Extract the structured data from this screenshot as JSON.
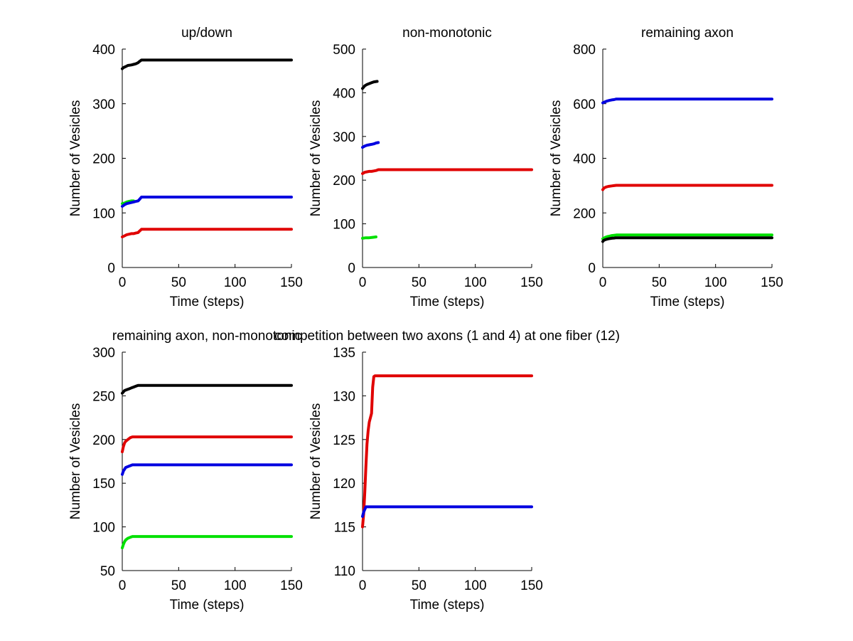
{
  "chart_data": [
    {
      "type": "line",
      "title": "up/down",
      "xlabel": "Time (steps)",
      "ylabel": "Number of Vesicles",
      "xlim": [
        0,
        150
      ],
      "ylim": [
        0,
        400
      ],
      "xticks": [
        0,
        50,
        100,
        150
      ],
      "yticks": [
        0,
        100,
        200,
        300,
        400
      ],
      "grid": false,
      "series": [
        {
          "name": "black",
          "color": "#000000",
          "x": [
            0,
            1,
            3,
            5,
            8,
            10,
            12,
            14,
            15,
            17,
            150
          ],
          "y": [
            364,
            366,
            368,
            370,
            371,
            372,
            373,
            375,
            377,
            380,
            380
          ]
        },
        {
          "name": "green",
          "color": "#00e000",
          "x": [
            0,
            2,
            4,
            6,
            8,
            10
          ],
          "y": [
            117,
            118,
            120,
            121,
            122,
            122
          ]
        },
        {
          "name": "blue",
          "color": "#0000e0",
          "x": [
            0,
            2,
            4,
            6,
            8,
            10,
            12,
            14,
            15,
            17,
            150
          ],
          "y": [
            112,
            115,
            117,
            118,
            119,
            120,
            121,
            122,
            124,
            129,
            129
          ]
        },
        {
          "name": "red",
          "color": "#e00000",
          "x": [
            0,
            2,
            4,
            6,
            8,
            10,
            12,
            14,
            15,
            17,
            150
          ],
          "y": [
            56,
            58,
            60,
            61,
            62,
            62,
            63,
            64,
            66,
            70,
            70
          ]
        }
      ]
    },
    {
      "type": "line",
      "title": "non-monotonic",
      "xlabel": "Time (steps)",
      "ylabel": "Number of Vesicles",
      "xlim": [
        0,
        150
      ],
      "ylim": [
        0,
        500
      ],
      "xticks": [
        0,
        50,
        100,
        150
      ],
      "yticks": [
        0,
        100,
        200,
        300,
        400,
        500
      ],
      "grid": false,
      "series": [
        {
          "name": "black",
          "color": "#000000",
          "x": [
            0,
            2,
            4,
            6,
            8,
            10,
            13
          ],
          "y": [
            410,
            416,
            419,
            421,
            423,
            425,
            426
          ]
        },
        {
          "name": "blue",
          "color": "#0000e0",
          "x": [
            0,
            2,
            4,
            6,
            8,
            10,
            12,
            14
          ],
          "y": [
            275,
            278,
            280,
            281,
            282,
            283,
            285,
            286
          ]
        },
        {
          "name": "red",
          "color": "#e00000",
          "x": [
            0,
            2,
            4,
            6,
            8,
            10,
            12,
            14,
            150
          ],
          "y": [
            215,
            218,
            219,
            220,
            220,
            221,
            222,
            224,
            224
          ]
        },
        {
          "name": "green",
          "color": "#00e000",
          "x": [
            0,
            3,
            6,
            9,
            12
          ],
          "y": [
            67,
            68,
            68,
            69,
            70
          ]
        }
      ]
    },
    {
      "type": "line",
      "title": "remaining axon",
      "xlabel": "Time (steps)",
      "ylabel": "Number of Vesicles",
      "xlim": [
        0,
        150
      ],
      "ylim": [
        0,
        800
      ],
      "xticks": [
        0,
        50,
        100,
        150
      ],
      "yticks": [
        0,
        200,
        400,
        600,
        800
      ],
      "grid": false,
      "series": [
        {
          "name": "blue",
          "color": "#0000e0",
          "x": [
            0,
            2,
            4,
            6,
            8,
            10,
            12,
            150
          ],
          "y": [
            603,
            607,
            610,
            612,
            614,
            615,
            617,
            617
          ]
        },
        {
          "name": "red",
          "color": "#e00000",
          "x": [
            0,
            1,
            3,
            5,
            8,
            10,
            12,
            150
          ],
          "y": [
            285,
            291,
            295,
            297,
            299,
            300,
            301,
            301
          ]
        },
        {
          "name": "green",
          "color": "#00e000",
          "x": [
            0,
            2,
            4,
            6,
            8,
            10,
            12,
            150
          ],
          "y": [
            105,
            110,
            113,
            115,
            117,
            118,
            119,
            119
          ]
        },
        {
          "name": "black",
          "color": "#000000",
          "x": [
            0,
            1,
            3,
            5,
            8,
            10,
            12,
            150
          ],
          "y": [
            95,
            100,
            103,
            105,
            107,
            108,
            109,
            109
          ]
        }
      ]
    },
    {
      "type": "line",
      "title": "remaining axon, non-monotonic",
      "xlabel": "Time (steps)",
      "ylabel": "Number of Vesicles",
      "xlim": [
        0,
        150
      ],
      "ylim": [
        50,
        300
      ],
      "xticks": [
        0,
        50,
        100,
        150
      ],
      "yticks": [
        50,
        100,
        150,
        200,
        250,
        300
      ],
      "grid": false,
      "series": [
        {
          "name": "black",
          "color": "#000000",
          "x": [
            0,
            2,
            4,
            6,
            8,
            10,
            12,
            14,
            150
          ],
          "y": [
            253,
            256,
            257,
            258,
            259,
            260,
            261,
            262,
            262
          ]
        },
        {
          "name": "red",
          "color": "#e00000",
          "x": [
            0,
            1,
            2,
            3,
            5,
            7,
            9,
            12,
            150
          ],
          "y": [
            186,
            192,
            196,
            198,
            200,
            202,
            203,
            203,
            203
          ]
        },
        {
          "name": "blue",
          "color": "#0000e0",
          "x": [
            0,
            1,
            2,
            3,
            5,
            7,
            9,
            12,
            150
          ],
          "y": [
            160,
            164,
            166,
            168,
            169,
            170,
            171,
            171,
            171
          ]
        },
        {
          "name": "green",
          "color": "#00e000",
          "x": [
            0,
            1,
            2,
            3,
            5,
            7,
            9,
            12,
            150
          ],
          "y": [
            76,
            80,
            83,
            85,
            87,
            88,
            89,
            89,
            89
          ]
        }
      ]
    },
    {
      "type": "line",
      "title": "competition between two axons (1 and 4) at one fiber (12)",
      "xlabel": "Time (steps)",
      "ylabel": "Number of Vesicles",
      "xlim": [
        0,
        150
      ],
      "ylim": [
        110,
        135
      ],
      "xticks": [
        0,
        50,
        100,
        150
      ],
      "yticks": [
        110,
        115,
        120,
        125,
        130,
        135
      ],
      "grid": false,
      "series": [
        {
          "name": "red",
          "color": "#e00000",
          "x": [
            0,
            1,
            2,
            3,
            4,
            5,
            6,
            7,
            8,
            9,
            10,
            11,
            150
          ],
          "y": [
            115,
            116.5,
            119,
            122,
            124.5,
            126,
            127,
            127.5,
            128,
            131,
            132.2,
            132.3,
            132.3
          ]
        },
        {
          "name": "blue",
          "color": "#0000e0",
          "x": [
            0,
            1,
            2,
            3,
            4,
            150
          ],
          "y": [
            116.2,
            116.7,
            117,
            117.3,
            117.3,
            117.3
          ]
        }
      ]
    }
  ]
}
